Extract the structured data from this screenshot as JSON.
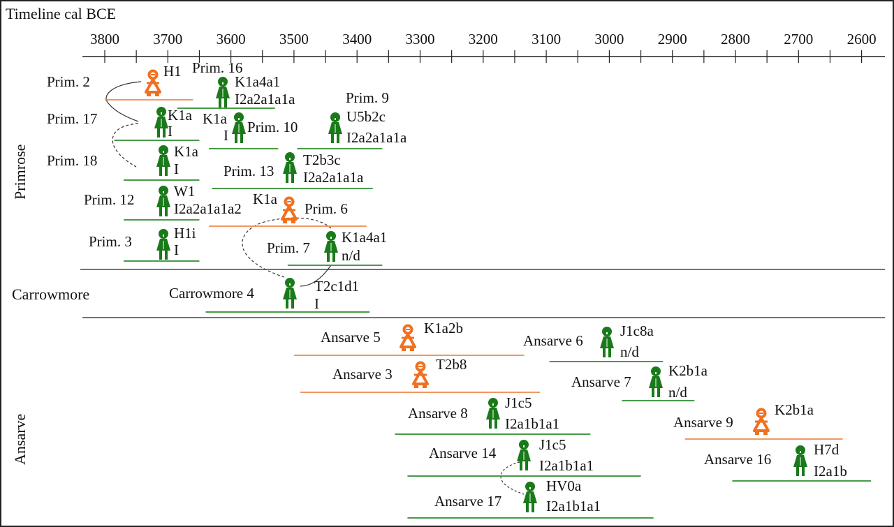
{
  "title": "Timeline cal BCE",
  "axis": {
    "ticks": [
      3800,
      3700,
      3600,
      3500,
      3400,
      3300,
      3200,
      3100,
      3000,
      2900,
      2800,
      2700,
      2600
    ],
    "minor_step": 50
  },
  "colors": {
    "male": "#1a7a1a",
    "female": "#f07020",
    "female_bar": "#f08a4a",
    "male_bar": "#2e8b2e"
  },
  "groups": [
    {
      "name": "Primrose"
    },
    {
      "name": "Carrowmore"
    },
    {
      "name": "Ansarve"
    }
  ],
  "individuals": [
    {
      "name": "Prim. 2",
      "sex": "female",
      "mt": "H1",
      "y": "",
      "range": [
        3800,
        3660
      ]
    },
    {
      "name": "Prim. 16",
      "sex": "male",
      "mt": "K1a4a1",
      "y": "I2a2a1a1a",
      "range": [
        3685,
        3530
      ]
    },
    {
      "name": "Prim. 17",
      "sex": "male",
      "mt": "K1a",
      "y": "I",
      "range": [
        3785,
        3650
      ]
    },
    {
      "name": "Prim. 10",
      "sex": "male",
      "mt": "K1a",
      "y": "I",
      "range": [
        3635,
        3525
      ]
    },
    {
      "name": "Prim. 9",
      "sex": "male",
      "mt": "U5b2c",
      "y": "I2a2a1a1a",
      "range": [
        3495,
        3360
      ]
    },
    {
      "name": "Prim. 18",
      "sex": "male",
      "mt": "K1a",
      "y": "I",
      "range": [
        3770,
        3650
      ]
    },
    {
      "name": "Prim. 13",
      "sex": "male",
      "mt": "T2b3c",
      "y": "I2a2a1a1a",
      "range": [
        3630,
        3375
      ]
    },
    {
      "name": "Prim. 12",
      "sex": "male",
      "mt": "W1",
      "y": "I2a2a1a1a2",
      "range": [
        3770,
        3650
      ]
    },
    {
      "name": "Prim. 6",
      "sex": "female",
      "mt": "K1a",
      "y": "",
      "range": [
        3635,
        3385
      ]
    },
    {
      "name": "Prim. 3",
      "sex": "male",
      "mt": "H1i",
      "y": "I",
      "range": [
        3770,
        3650
      ]
    },
    {
      "name": "Prim. 7",
      "sex": "male",
      "mt": "K1a4a1",
      "y": "n/d",
      "range": [
        3510,
        3360
      ]
    },
    {
      "name": "Carrowmore 4",
      "sex": "male",
      "mt": "T2c1d1",
      "y": "I",
      "range": [
        3640,
        3380
      ]
    },
    {
      "name": "Ansarve 5",
      "sex": "female",
      "mt": "K1a2b",
      "y": "",
      "range": [
        3500,
        3135
      ]
    },
    {
      "name": "Ansarve 6",
      "sex": "male",
      "mt": "J1c8a",
      "y": "n/d",
      "range": [
        3095,
        2915
      ]
    },
    {
      "name": "Ansarve 3",
      "sex": "female",
      "mt": "T2b8",
      "y": "",
      "range": [
        3490,
        3110
      ]
    },
    {
      "name": "Ansarve 7",
      "sex": "male",
      "mt": "K2b1a",
      "y": "n/d",
      "range": [
        2980,
        2865
      ]
    },
    {
      "name": "Ansarve 8",
      "sex": "male",
      "mt": "J1c5",
      "y": "I2a1b1a1",
      "range": [
        3340,
        3030
      ]
    },
    {
      "name": "Ansarve 9",
      "sex": "female",
      "mt": "K2b1a",
      "y": "",
      "range": [
        2880,
        2630
      ]
    },
    {
      "name": "Ansarve 14",
      "sex": "male",
      "mt": "J1c5",
      "y": "I2a1b1a1",
      "range": [
        3320,
        2950
      ]
    },
    {
      "name": "Ansarve 16",
      "sex": "male",
      "mt": "H7d",
      "y": "I2a1b",
      "range": [
        2805,
        2585
      ]
    },
    {
      "name": "Ansarve 17",
      "sex": "male",
      "mt": "HV0a",
      "y": "I2a1b1a1",
      "range": [
        3320,
        2930
      ]
    }
  ]
}
